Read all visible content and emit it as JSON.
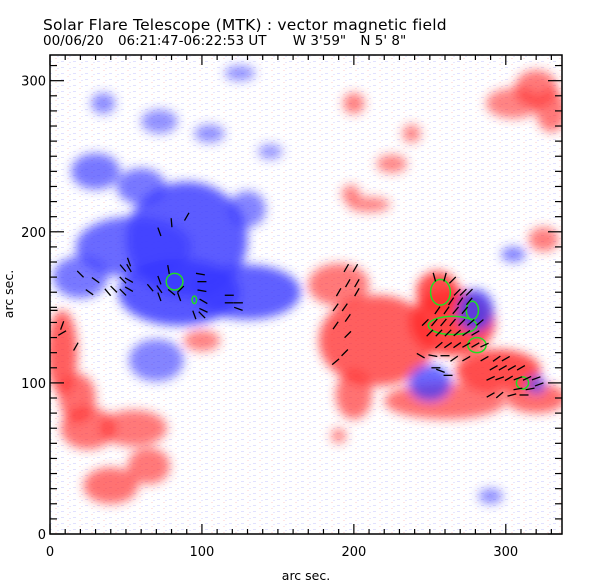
{
  "header": {
    "title": "Solar Flare Telescope (MTK) : vector magnetic field",
    "date": "00/06/20",
    "time_range": "06:21:47-06:22:53 UT",
    "longitude": "W 3'59\"",
    "latitude": "N 5' 8\""
  },
  "chart_data": {
    "type": "heatmap",
    "title": "Solar Flare Telescope (MTK) : vector magnetic field",
    "xlabel": "arc sec.",
    "ylabel": "arc sec.",
    "xlim": [
      0,
      337
    ],
    "ylim": [
      0,
      317
    ],
    "x_ticks": [
      0,
      100,
      200,
      300
    ],
    "y_ticks": [
      0,
      100,
      200,
      300
    ],
    "x_tick_labels": [
      "0",
      "100",
      "200",
      "300"
    ],
    "y_tick_labels": [
      "0",
      "100",
      "200",
      "300"
    ],
    "minor_tick_step": 10,
    "colors": {
      "positive": "#ff3030",
      "negative": "#3a3aff",
      "contour": "#22dd22",
      "vector": "#000000"
    },
    "positive_regions": [
      {
        "x": 215,
        "y": 128,
        "rx": 38,
        "ry": 30,
        "strength": 0.75
      },
      {
        "x": 265,
        "y": 140,
        "rx": 28,
        "ry": 22,
        "strength": 1.0
      },
      {
        "x": 255,
        "y": 160,
        "rx": 14,
        "ry": 14,
        "strength": 0.95
      },
      {
        "x": 295,
        "y": 108,
        "rx": 28,
        "ry": 14,
        "strength": 0.9
      },
      {
        "x": 320,
        "y": 90,
        "rx": 20,
        "ry": 10,
        "strength": 0.6
      },
      {
        "x": 200,
        "y": 92,
        "rx": 12,
        "ry": 16,
        "strength": 0.55
      },
      {
        "x": 190,
        "y": 165,
        "rx": 20,
        "ry": 14,
        "strength": 0.5
      },
      {
        "x": 260,
        "y": 88,
        "rx": 40,
        "ry": 12,
        "strength": 0.55
      },
      {
        "x": 8,
        "y": 120,
        "rx": 10,
        "ry": 28,
        "strength": 0.75
      },
      {
        "x": 18,
        "y": 90,
        "rx": 12,
        "ry": 16,
        "strength": 0.6
      },
      {
        "x": 25,
        "y": 70,
        "rx": 18,
        "ry": 14,
        "strength": 0.55
      },
      {
        "x": 55,
        "y": 70,
        "rx": 22,
        "ry": 12,
        "strength": 0.5
      },
      {
        "x": 40,
        "y": 32,
        "rx": 18,
        "ry": 12,
        "strength": 0.55
      },
      {
        "x": 65,
        "y": 45,
        "rx": 14,
        "ry": 12,
        "strength": 0.5
      },
      {
        "x": 320,
        "y": 295,
        "rx": 14,
        "ry": 12,
        "strength": 0.5
      },
      {
        "x": 330,
        "y": 280,
        "rx": 10,
        "ry": 14,
        "strength": 0.5
      },
      {
        "x": 305,
        "y": 285,
        "rx": 18,
        "ry": 10,
        "strength": 0.4
      },
      {
        "x": 200,
        "y": 285,
        "rx": 7,
        "ry": 7,
        "strength": 0.45
      },
      {
        "x": 225,
        "y": 245,
        "rx": 10,
        "ry": 6,
        "strength": 0.35
      },
      {
        "x": 238,
        "y": 265,
        "rx": 6,
        "ry": 6,
        "strength": 0.35
      },
      {
        "x": 325,
        "y": 195,
        "rx": 10,
        "ry": 8,
        "strength": 0.45
      },
      {
        "x": 198,
        "y": 225,
        "rx": 6,
        "ry": 6,
        "strength": 0.4
      },
      {
        "x": 210,
        "y": 218,
        "rx": 14,
        "ry": 5,
        "strength": 0.35
      },
      {
        "x": 100,
        "y": 128,
        "rx": 12,
        "ry": 7,
        "strength": 0.4
      },
      {
        "x": 190,
        "y": 65,
        "rx": 5,
        "ry": 5,
        "strength": 0.35
      }
    ],
    "negative_regions": [
      {
        "x": 90,
        "y": 195,
        "rx": 40,
        "ry": 38,
        "strength": 0.85
      },
      {
        "x": 55,
        "y": 190,
        "rx": 38,
        "ry": 20,
        "strength": 0.7
      },
      {
        "x": 130,
        "y": 160,
        "rx": 35,
        "ry": 18,
        "strength": 0.8
      },
      {
        "x": 85,
        "y": 160,
        "rx": 40,
        "ry": 22,
        "strength": 0.9
      },
      {
        "x": 20,
        "y": 170,
        "rx": 18,
        "ry": 14,
        "strength": 0.55
      },
      {
        "x": 30,
        "y": 240,
        "rx": 16,
        "ry": 12,
        "strength": 0.55
      },
      {
        "x": 60,
        "y": 230,
        "rx": 16,
        "ry": 12,
        "strength": 0.55
      },
      {
        "x": 130,
        "y": 215,
        "rx": 12,
        "ry": 12,
        "strength": 0.45
      },
      {
        "x": 70,
        "y": 115,
        "rx": 18,
        "ry": 14,
        "strength": 0.45
      },
      {
        "x": 280,
        "y": 148,
        "rx": 12,
        "ry": 14,
        "strength": 0.8
      },
      {
        "x": 250,
        "y": 100,
        "rx": 14,
        "ry": 12,
        "strength": 0.7
      },
      {
        "x": 320,
        "y": 99,
        "rx": 6,
        "ry": 6,
        "strength": 0.55
      },
      {
        "x": 305,
        "y": 185,
        "rx": 8,
        "ry": 5,
        "strength": 0.5
      },
      {
        "x": 35,
        "y": 285,
        "rx": 8,
        "ry": 7,
        "strength": 0.35
      },
      {
        "x": 72,
        "y": 273,
        "rx": 12,
        "ry": 8,
        "strength": 0.3
      },
      {
        "x": 105,
        "y": 265,
        "rx": 10,
        "ry": 6,
        "strength": 0.3
      },
      {
        "x": 145,
        "y": 253,
        "rx": 8,
        "ry": 5,
        "strength": 0.25
      },
      {
        "x": 125,
        "y": 305,
        "rx": 10,
        "ry": 5,
        "strength": 0.3
      },
      {
        "x": 290,
        "y": 25,
        "rx": 8,
        "ry": 5,
        "strength": 0.35
      }
    ],
    "contours": [
      {
        "x": 82,
        "y": 167,
        "rx": 5.5,
        "ry": 5.5
      },
      {
        "x": 95,
        "y": 155,
        "rx": 1.5,
        "ry": 2.5
      },
      {
        "x": 257,
        "y": 160,
        "rx": 6.5,
        "ry": 8.5
      },
      {
        "x": 278,
        "y": 148,
        "rx": 4,
        "ry": 6
      },
      {
        "x": 265,
        "y": 138,
        "rx": 16,
        "ry": 6
      },
      {
        "x": 281,
        "y": 125,
        "rx": 6,
        "ry": 5
      },
      {
        "x": 311,
        "y": 100,
        "rx": 4,
        "ry": 4
      }
    ],
    "vectors": [
      {
        "x": 90,
        "y": 210,
        "angle": 60
      },
      {
        "x": 80,
        "y": 206,
        "angle": 95
      },
      {
        "x": 72,
        "y": 200,
        "angle": 110
      },
      {
        "x": 52,
        "y": 180,
        "angle": 110
      },
      {
        "x": 48,
        "y": 176,
        "angle": 130
      },
      {
        "x": 52,
        "y": 176,
        "angle": 120
      },
      {
        "x": 48,
        "y": 168,
        "angle": 135
      },
      {
        "x": 52,
        "y": 168,
        "angle": 150
      },
      {
        "x": 52,
        "y": 162,
        "angle": 150
      },
      {
        "x": 42,
        "y": 162,
        "angle": 135
      },
      {
        "x": 30,
        "y": 168,
        "angle": 145
      },
      {
        "x": 20,
        "y": 172,
        "angle": 135
      },
      {
        "x": 26,
        "y": 160,
        "angle": 145
      },
      {
        "x": 38,
        "y": 160,
        "angle": 130
      },
      {
        "x": 48,
        "y": 160,
        "angle": 135
      },
      {
        "x": 78,
        "y": 175,
        "angle": 100
      },
      {
        "x": 72,
        "y": 168,
        "angle": 110
      },
      {
        "x": 66,
        "y": 163,
        "angle": 130
      },
      {
        "x": 72,
        "y": 162,
        "angle": 125
      },
      {
        "x": 80,
        "y": 160,
        "angle": 140
      },
      {
        "x": 86,
        "y": 162,
        "angle": 45
      },
      {
        "x": 72,
        "y": 157,
        "angle": 110
      },
      {
        "x": 85,
        "y": 157,
        "angle": 110
      },
      {
        "x": 99,
        "y": 172,
        "angle": 170
      },
      {
        "x": 100,
        "y": 167,
        "angle": 0
      },
      {
        "x": 100,
        "y": 161,
        "angle": 170
      },
      {
        "x": 101,
        "y": 154,
        "angle": 150
      },
      {
        "x": 101,
        "y": 148,
        "angle": 155
      },
      {
        "x": 95,
        "y": 145,
        "angle": 110
      },
      {
        "x": 100,
        "y": 145,
        "angle": 135
      },
      {
        "x": 118,
        "y": 158,
        "angle": 0
      },
      {
        "x": 118,
        "y": 153,
        "angle": 0
      },
      {
        "x": 124,
        "y": 153,
        "angle": 0
      },
      {
        "x": 124,
        "y": 149,
        "angle": 160
      },
      {
        "x": 2,
        "y": 148,
        "angle": 0
      },
      {
        "x": 8,
        "y": 138,
        "angle": 70
      },
      {
        "x": 8,
        "y": 133,
        "angle": 30
      },
      {
        "x": 17,
        "y": 124,
        "angle": 60
      },
      {
        "x": 195,
        "y": 176,
        "angle": 60
      },
      {
        "x": 201,
        "y": 176,
        "angle": 60
      },
      {
        "x": 196,
        "y": 166,
        "angle": 60
      },
      {
        "x": 202,
        "y": 166,
        "angle": 60
      },
      {
        "x": 190,
        "y": 160,
        "angle": 60
      },
      {
        "x": 202,
        "y": 160,
        "angle": 60
      },
      {
        "x": 188,
        "y": 150,
        "angle": 55
      },
      {
        "x": 194,
        "y": 150,
        "angle": 55
      },
      {
        "x": 196,
        "y": 143,
        "angle": 55
      },
      {
        "x": 188,
        "y": 138,
        "angle": 55
      },
      {
        "x": 196,
        "y": 132,
        "angle": 45
      },
      {
        "x": 194,
        "y": 120,
        "angle": 45
      },
      {
        "x": 188,
        "y": 114,
        "angle": 40
      },
      {
        "x": 253,
        "y": 170,
        "angle": 105
      },
      {
        "x": 260,
        "y": 170,
        "angle": 75
      },
      {
        "x": 265,
        "y": 168,
        "angle": 45
      },
      {
        "x": 268,
        "y": 160,
        "angle": 45
      },
      {
        "x": 272,
        "y": 160,
        "angle": 45
      },
      {
        "x": 276,
        "y": 160,
        "angle": 45
      },
      {
        "x": 264,
        "y": 154,
        "angle": 55
      },
      {
        "x": 270,
        "y": 154,
        "angle": 55
      },
      {
        "x": 276,
        "y": 154,
        "angle": 50
      },
      {
        "x": 255,
        "y": 148,
        "angle": 55
      },
      {
        "x": 261,
        "y": 148,
        "angle": 55
      },
      {
        "x": 267,
        "y": 148,
        "angle": 50
      },
      {
        "x": 273,
        "y": 148,
        "angle": 50
      },
      {
        "x": 247,
        "y": 140,
        "angle": 45
      },
      {
        "x": 253,
        "y": 140,
        "angle": 50
      },
      {
        "x": 259,
        "y": 140,
        "angle": 50
      },
      {
        "x": 265,
        "y": 140,
        "angle": 50
      },
      {
        "x": 271,
        "y": 140,
        "angle": 45
      },
      {
        "x": 277,
        "y": 140,
        "angle": 40
      },
      {
        "x": 283,
        "y": 140,
        "angle": 40
      },
      {
        "x": 250,
        "y": 133,
        "angle": 45
      },
      {
        "x": 256,
        "y": 133,
        "angle": 45
      },
      {
        "x": 262,
        "y": 133,
        "angle": 45
      },
      {
        "x": 268,
        "y": 133,
        "angle": 40
      },
      {
        "x": 274,
        "y": 133,
        "angle": 35
      },
      {
        "x": 280,
        "y": 133,
        "angle": 30
      },
      {
        "x": 256,
        "y": 125,
        "angle": 40
      },
      {
        "x": 262,
        "y": 125,
        "angle": 35
      },
      {
        "x": 268,
        "y": 125,
        "angle": 35
      },
      {
        "x": 274,
        "y": 125,
        "angle": 30
      },
      {
        "x": 280,
        "y": 125,
        "angle": 30
      },
      {
        "x": 286,
        "y": 125,
        "angle": 25
      },
      {
        "x": 266,
        "y": 116,
        "angle": 35
      },
      {
        "x": 274,
        "y": 116,
        "angle": 30
      },
      {
        "x": 286,
        "y": 116,
        "angle": 30
      },
      {
        "x": 294,
        "y": 116,
        "angle": 35
      },
      {
        "x": 300,
        "y": 116,
        "angle": 30
      },
      {
        "x": 292,
        "y": 110,
        "angle": 30
      },
      {
        "x": 298,
        "y": 110,
        "angle": 30
      },
      {
        "x": 304,
        "y": 110,
        "angle": 30
      },
      {
        "x": 310,
        "y": 110,
        "angle": 30
      },
      {
        "x": 290,
        "y": 103,
        "angle": 25
      },
      {
        "x": 296,
        "y": 103,
        "angle": 20
      },
      {
        "x": 302,
        "y": 103,
        "angle": 30
      },
      {
        "x": 308,
        "y": 103,
        "angle": 20
      },
      {
        "x": 314,
        "y": 103,
        "angle": 25
      },
      {
        "x": 320,
        "y": 103,
        "angle": 20
      },
      {
        "x": 308,
        "y": 96,
        "angle": 10
      },
      {
        "x": 316,
        "y": 96,
        "angle": 10
      },
      {
        "x": 322,
        "y": 99,
        "angle": 20
      },
      {
        "x": 290,
        "y": 92,
        "angle": 30
      },
      {
        "x": 296,
        "y": 92,
        "angle": 40
      },
      {
        "x": 304,
        "y": 92,
        "angle": 15
      },
      {
        "x": 312,
        "y": 92,
        "angle": 0
      },
      {
        "x": 244,
        "y": 118,
        "angle": 150
      },
      {
        "x": 252,
        "y": 118,
        "angle": 170
      },
      {
        "x": 260,
        "y": 118,
        "angle": 0
      },
      {
        "x": 254,
        "y": 110,
        "angle": 0
      },
      {
        "x": 257,
        "y": 108,
        "angle": 160
      },
      {
        "x": 262,
        "y": 105,
        "angle": 0
      }
    ]
  }
}
